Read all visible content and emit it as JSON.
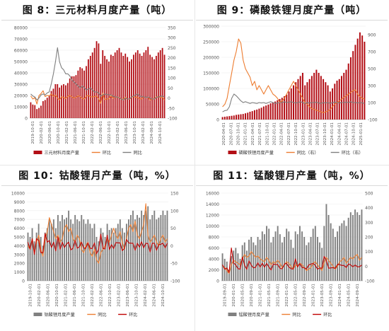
{
  "chart_data": [
    {
      "type": "bar",
      "title": "图 8：三元材料月度产量（吨）",
      "ylim": [
        0,
        80000
      ],
      "y2lim": [
        -100,
        350
      ],
      "yticks": [
        0,
        10000,
        20000,
        30000,
        40000,
        50000,
        60000,
        70000,
        80000
      ],
      "y2ticks": [
        -100,
        -50,
        0,
        50,
        100,
        150,
        200,
        250,
        300,
        350
      ],
      "xtick_labels": [
        "2019-10-01",
        "2020-02-01",
        "2020-06-01",
        "2020-10-01",
        "2021-02-01",
        "2021-06-01",
        "2021-10-01",
        "2022-02-01",
        "2022-06-01",
        "2022-10-01",
        "2023-02-01",
        "2023-06-01",
        "2023-10-01",
        "2024-02-01",
        "2024-06-01",
        "2024-10-01"
      ],
      "bar_color": "#b30f16",
      "line_colors": [
        "#ed7d31",
        "#7f7f7f"
      ],
      "legend": [
        "三元材料月度产量",
        "环比",
        "同比"
      ],
      "series": [
        {
          "name": "三元材料月度产量",
          "axis": "left",
          "values": [
            14000,
            12000,
            11500,
            8000,
            9000,
            11000,
            15000,
            16000,
            18000,
            20000,
            24000,
            26000,
            30000,
            30000,
            27000,
            29000,
            30000,
            29000,
            31000,
            35000,
            37000,
            37000,
            38000,
            42000,
            45000,
            44000,
            42000,
            46000,
            52000,
            55000,
            58000,
            62000,
            68000,
            66000,
            48000,
            60000,
            55000,
            52000,
            50000,
            56000,
            55000,
            58000,
            60000,
            62000,
            58000,
            55000,
            57000,
            54000,
            50000,
            52000,
            56000,
            58000,
            60000,
            57000,
            55000,
            58000,
            60000,
            63000,
            56000,
            54000,
            52000,
            55000,
            58000,
            60000,
            62000,
            56000
          ]
        },
        {
          "name": "环比",
          "axis": "right",
          "values": [
            10,
            -5,
            2,
            -30,
            12,
            22,
            36,
            7,
            13,
            11,
            20,
            8,
            15,
            0,
            -10,
            7,
            3,
            -3,
            7,
            13,
            6,
            0,
            3,
            11,
            7,
            -2,
            -5,
            10,
            13,
            6,
            5,
            7,
            10,
            -3,
            -27,
            25,
            -8,
            -5,
            -4,
            12,
            -2,
            5,
            3,
            3,
            -6,
            -5,
            4,
            -5,
            -7,
            4,
            8,
            4,
            3,
            -5,
            -4,
            5,
            3,
            5,
            -11,
            -4,
            -4,
            6,
            5,
            3,
            3,
            -10
          ]
        },
        {
          "name": "同比",
          "axis": "right",
          "values": [
            20,
            10,
            5,
            -10,
            0,
            15,
            20,
            15,
            25,
            30,
            70,
            120,
            180,
            250,
            180,
            150,
            140,
            120,
            120,
            110,
            90,
            80,
            70,
            60,
            50,
            60,
            50,
            40,
            45,
            50,
            40,
            30,
            30,
            25,
            10,
            15,
            20,
            18,
            16,
            15,
            10,
            5,
            5,
            0,
            -5,
            -10,
            0,
            -5,
            -5,
            5,
            10,
            15,
            20,
            10,
            8,
            5,
            3,
            5,
            0,
            -5,
            -5,
            3,
            5,
            8,
            10,
            5
          ]
        }
      ]
    },
    {
      "type": "bar",
      "title": "图 9：磷酸铁锂月度产量（吨）",
      "ylim": [
        0,
        300000
      ],
      "y2lim": [
        -100,
        1000
      ],
      "yticks": [
        0,
        50000,
        100000,
        150000,
        200000,
        250000,
        300000
      ],
      "y2ticks": [
        -100,
        100,
        300,
        500,
        700,
        900
      ],
      "xtick_labels": [
        "2020-04-01",
        "2020-07-01",
        "2020-10-01",
        "2021-01-01",
        "2021-04-01",
        "2021-07-01",
        "2021-10-01",
        "2022-01-01",
        "2022-04-01",
        "2022-07-01",
        "2022-10-01",
        "2023-01-01",
        "2023-04-01",
        "2023-07-01",
        "2023-10-01",
        "2024-01-01",
        "2024-04-01",
        "2024-07-01",
        "2024-10-01",
        "2025-01-01"
      ],
      "bar_color": "#b30f16",
      "line_colors": [
        "#ed7d31",
        "#7f7f7f"
      ],
      "legend": [
        "磷酸铁锂月度产量",
        "同比（右）",
        "环比（右）"
      ],
      "series": [
        {
          "name": "磷酸铁锂月度产量",
          "axis": "left",
          "values": [
            8000,
            9000,
            10000,
            11000,
            12000,
            13000,
            15000,
            16000,
            17000,
            18000,
            20000,
            22000,
            25000,
            27000,
            30000,
            32000,
            35000,
            38000,
            42000,
            45000,
            48000,
            52000,
            55000,
            58000,
            62000,
            66000,
            70000,
            75000,
            80000,
            90000,
            100000,
            110000,
            120000,
            130000,
            140000,
            150000,
            110000,
            120000,
            130000,
            140000,
            150000,
            160000,
            150000,
            140000,
            130000,
            120000,
            110000,
            90000,
            100000,
            115000,
            125000,
            130000,
            140000,
            150000,
            160000,
            180000,
            200000,
            220000,
            240000,
            260000,
            280000,
            270000,
            250000
          ]
        },
        {
          "name": "同比（右）",
          "axis": "right",
          "values": [
            50,
            80,
            150,
            300,
            450,
            600,
            700,
            850,
            800,
            600,
            500,
            450,
            400,
            300,
            350,
            250,
            300,
            250,
            200,
            250,
            300,
            250,
            200,
            180,
            150,
            100,
            120,
            150,
            200,
            250,
            300,
            350,
            300,
            250,
            200,
            150,
            100,
            80,
            50,
            30,
            20,
            10,
            0,
            -10,
            -20,
            -10,
            0,
            20,
            50,
            80,
            100,
            120,
            140,
            160,
            180,
            200,
            220,
            240,
            250,
            200,
            170,
            150,
            140
          ]
        },
        {
          "name": "环比（右）",
          "axis": "right",
          "values": [
            -10,
            5,
            10,
            50,
            150,
            200,
            180,
            150,
            120,
            100,
            110,
            100,
            90,
            100,
            95,
            90,
            100,
            95,
            100,
            90,
            100,
            110,
            100,
            90,
            95,
            100,
            100,
            110,
            100,
            105,
            110,
            100,
            95,
            100,
            110,
            100,
            90,
            100,
            95,
            100,
            100,
            105,
            95,
            90,
            100,
            95,
            100,
            90,
            100,
            105,
            100,
            95,
            100,
            100,
            105,
            100,
            110,
            100,
            100,
            95,
            100,
            95,
            90
          ]
        }
      ]
    },
    {
      "type": "bar",
      "title": "图 10：钴酸锂月产量（吨，%）",
      "ylim": [
        0,
        10000
      ],
      "y2lim": [
        -100,
        150
      ],
      "yticks": [
        0,
        1000,
        2000,
        3000,
        4000,
        5000,
        6000,
        7000,
        8000,
        9000,
        10000
      ],
      "y2ticks": [
        -100,
        -50,
        0,
        50,
        100,
        150
      ],
      "xtick_labels": [
        "2019-10-01",
        "2020-02-01",
        "2020-06-01",
        "2020-10-01",
        "2021-02-01",
        "2021-06-01",
        "2021-10-01",
        "2022-02-01",
        "2022-06-01",
        "2022-10-01",
        "2023-02-01",
        "2023-06-01",
        "2023-10-01",
        "2024-02-01",
        "2024-06-01",
        "2024-10-01"
      ],
      "bar_color": "#808080",
      "line_colors": [
        "#ed7d31",
        "#c00000"
      ],
      "legend": [
        "钴酸锂月度产量",
        "同比",
        "环比"
      ],
      "series": [
        {
          "name": "钴酸锂月度产量",
          "axis": "left",
          "values": [
            5500,
            5000,
            6000,
            4500,
            5500,
            6500,
            5000,
            4000,
            5500,
            6000,
            7000,
            6500,
            7000,
            6000,
            7500,
            6800,
            7500,
            7000,
            7200,
            8000,
            7000,
            6500,
            7500,
            7000,
            6800,
            7500,
            7000,
            6500,
            7000,
            6500,
            6000,
            6500,
            5000,
            4500,
            6000,
            5500,
            5000,
            6500,
            5800,
            6000,
            5500,
            6000,
            6500,
            7000,
            6000,
            5500,
            6500,
            7000,
            7500,
            8000,
            7000,
            7500,
            7200,
            8000,
            7500,
            8000,
            8500,
            7000,
            7500,
            8000,
            7000,
            7200,
            7500,
            8000,
            7500,
            8000
          ]
        },
        {
          "name": "同比",
          "axis": "right",
          "values": [
            0,
            -10,
            20,
            -20,
            10,
            30,
            -10,
            -30,
            20,
            40,
            80,
            60,
            40,
            20,
            30,
            10,
            20,
            50,
            60,
            40,
            50,
            20,
            10,
            30,
            20,
            -10,
            -20,
            0,
            10,
            -20,
            -30,
            -10,
            -40,
            -50,
            -20,
            -10,
            0,
            20,
            10,
            30,
            50,
            30,
            20,
            40,
            10,
            -10,
            20,
            50,
            60,
            40,
            70,
            30,
            20,
            40,
            60,
            120,
            30,
            10,
            20,
            30,
            10,
            0,
            20,
            30,
            10,
            20
          ]
        },
        {
          "name": "环比",
          "axis": "right",
          "values": [
            10,
            -10,
            20,
            -25,
            20,
            15,
            -20,
            -20,
            35,
            10,
            15,
            -5,
            10,
            -15,
            25,
            -10,
            10,
            -5,
            5,
            10,
            -12,
            -7,
            15,
            -7,
            -3,
            10,
            -7,
            -7,
            8,
            -7,
            -8,
            8,
            -23,
            -10,
            33,
            -8,
            -9,
            30,
            -11,
            3,
            -8,
            9,
            8,
            8,
            -14,
            -8,
            18,
            8,
            7,
            7,
            -13,
            7,
            -4,
            11,
            -6,
            7,
            6,
            -18,
            7,
            7,
            -13,
            3,
            4,
            7,
            -6,
            7
          ]
        }
      ]
    },
    {
      "type": "bar",
      "title": "图 11：锰酸锂月产量（吨，%）",
      "ylim": [
        0,
        16000
      ],
      "y2lim": [
        -100,
        500
      ],
      "yticks": [
        0,
        2000,
        4000,
        6000,
        8000,
        10000,
        12000,
        14000,
        16000
      ],
      "y2ticks": [
        -100,
        0,
        100,
        200,
        300,
        400,
        500
      ],
      "xtick_labels": [
        "2019-09-01",
        "2020-01-01",
        "2020-05-01",
        "2020-09-01",
        "2021-01-01",
        "2021-05-01",
        "2021-09-01",
        "2022-01-01",
        "2022-05-01",
        "2022-09-01",
        "2023-01-01",
        "2023-05-01",
        "2023-09-01",
        "2024-01-01",
        "2024-05-01",
        "2024-09-01"
      ],
      "bar_color": "#808080",
      "line_colors": [
        "#ed7d31",
        "#c00000"
      ],
      "legend": [
        "锰酸锂月度产量",
        "同比",
        "环比"
      ],
      "series": [
        {
          "name": "锰酸锂月度产量",
          "axis": "left",
          "values": [
            5000,
            4000,
            3500,
            2000,
            4500,
            5500,
            6000,
            5000,
            4000,
            6500,
            7000,
            5500,
            7500,
            8000,
            7000,
            6500,
            8000,
            7500,
            9000,
            8500,
            10000,
            9500,
            7000,
            8000,
            9000,
            10000,
            8500,
            7000,
            8000,
            9500,
            9000,
            7500,
            6000,
            9000,
            8500,
            10000,
            9000,
            8000,
            6500,
            7000,
            8000,
            9500,
            10000,
            8000,
            7000,
            6000,
            10000,
            14000,
            12000,
            10500,
            9500,
            8000,
            9000,
            10000,
            10500,
            11000,
            10000,
            11500,
            12500,
            12000,
            13000,
            12500,
            12000,
            13000
          ]
        },
        {
          "name": "同比",
          "axis": "right",
          "values": [
            0,
            -10,
            -30,
            -50,
            10,
            40,
            30,
            20,
            10,
            50,
            80,
            60,
            70,
            100,
            80,
            60,
            70,
            50,
            40,
            30,
            60,
            40,
            10,
            30,
            20,
            40,
            20,
            -10,
            10,
            30,
            20,
            0,
            -20,
            10,
            0,
            20,
            10,
            -10,
            -30,
            -20,
            -10,
            20,
            30,
            10,
            -10,
            -30,
            20,
            60,
            40,
            20,
            0,
            -20,
            0,
            30,
            40,
            60,
            20,
            40,
            60,
            50,
            70,
            80,
            40,
            60
          ]
        },
        {
          "name": "环比",
          "axis": "right",
          "values": [
            10,
            -20,
            -12,
            -43,
            125,
            22,
            9,
            -17,
            -20,
            62,
            8,
            -21,
            36,
            7,
            -12,
            -7,
            23,
            -6,
            20,
            -6,
            18,
            -5,
            -26,
            14,
            12,
            11,
            -15,
            -18,
            14,
            19,
            -5,
            -17,
            -20,
            50,
            -6,
            18,
            -10,
            -11,
            -19,
            8,
            14,
            19,
            5,
            -20,
            -12,
            -14,
            67,
            40,
            -14,
            -12,
            -10,
            -16,
            12,
            11,
            5,
            5,
            -9,
            15,
            9,
            -4,
            8,
            -4,
            -4,
            8
          ]
        }
      ]
    }
  ]
}
